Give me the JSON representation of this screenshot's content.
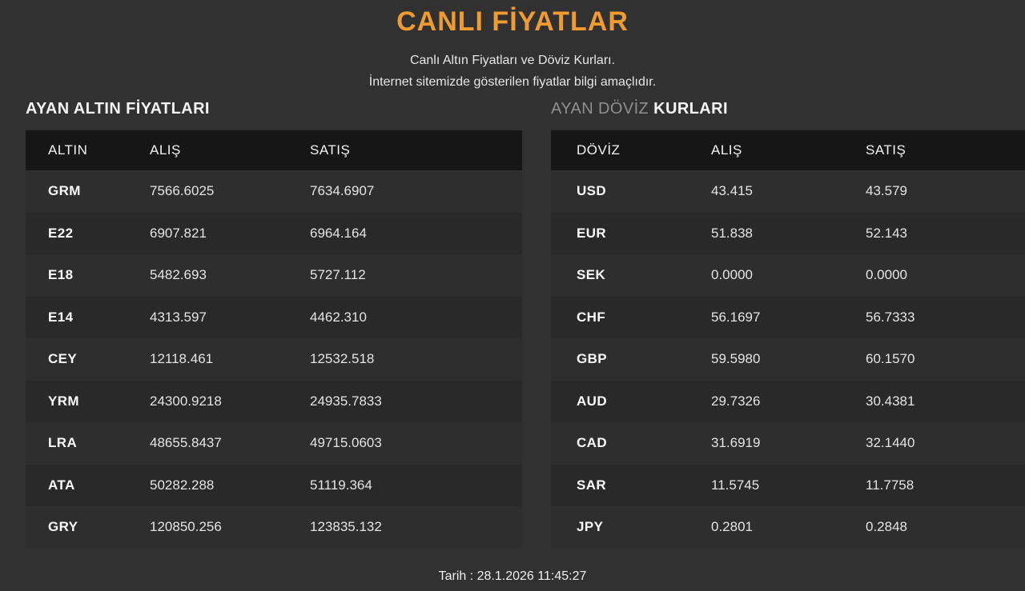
{
  "page": {
    "title": "CANLI FİYATLAR",
    "subtitle_line1": "Canlı Altın Fiyatları ve Döviz Kurları.",
    "subtitle_line2": "İnternet sitemizde gösterilen fiyatlar bilgi amaçlıdır.",
    "footer_date": "Tarih : 28.1.2026 11:45:27"
  },
  "colors": {
    "accent_orange": "#ef9b30",
    "page_bg": "#313131",
    "table_header_bg": "#161616",
    "row_odd": "#2e2e2e",
    "row_even": "#292929"
  },
  "gold_table": {
    "section_title": "AYAN ALTIN FİYATLARI",
    "columns": [
      "ALTIN",
      "ALIŞ",
      "SATIŞ"
    ],
    "rows": [
      {
        "code": "GRM",
        "buy": "7566.6025",
        "sell": "7634.6907"
      },
      {
        "code": "E22",
        "buy": "6907.821",
        "sell": "6964.164"
      },
      {
        "code": "E18",
        "buy": "5482.693",
        "sell": "5727.112"
      },
      {
        "code": "E14",
        "buy": "4313.597",
        "sell": "4462.310"
      },
      {
        "code": "CEY",
        "buy": "12118.461",
        "sell": "12532.518"
      },
      {
        "code": "YRM",
        "buy": "24300.9218",
        "sell": "24935.7833"
      },
      {
        "code": "LRA",
        "buy": "48655.8437",
        "sell": "49715.0603"
      },
      {
        "code": "ATA",
        "buy": "50282.288",
        "sell": "51119.364"
      },
      {
        "code": "GRY",
        "buy": "120850.256",
        "sell": "123835.132"
      }
    ]
  },
  "currency_table": {
    "section_title_muted": "AYAN DÖVİZ",
    "section_title_strong": "KURLARI",
    "columns": [
      "DÖVİZ",
      "ALIŞ",
      "SATIŞ"
    ],
    "rows": [
      {
        "code": "USD",
        "buy": "43.415",
        "sell": "43.579"
      },
      {
        "code": "EUR",
        "buy": "51.838",
        "sell": "52.143"
      },
      {
        "code": "SEK",
        "buy": "0.0000",
        "sell": "0.0000"
      },
      {
        "code": "CHF",
        "buy": "56.1697",
        "sell": "56.7333"
      },
      {
        "code": "GBP",
        "buy": "59.5980",
        "sell": "60.1570"
      },
      {
        "code": "AUD",
        "buy": "29.7326",
        "sell": "30.4381"
      },
      {
        "code": "CAD",
        "buy": "31.6919",
        "sell": "32.1440"
      },
      {
        "code": "SAR",
        "buy": "11.5745",
        "sell": "11.7758"
      },
      {
        "code": "JPY",
        "buy": "0.2801",
        "sell": "0.2848"
      }
    ]
  }
}
